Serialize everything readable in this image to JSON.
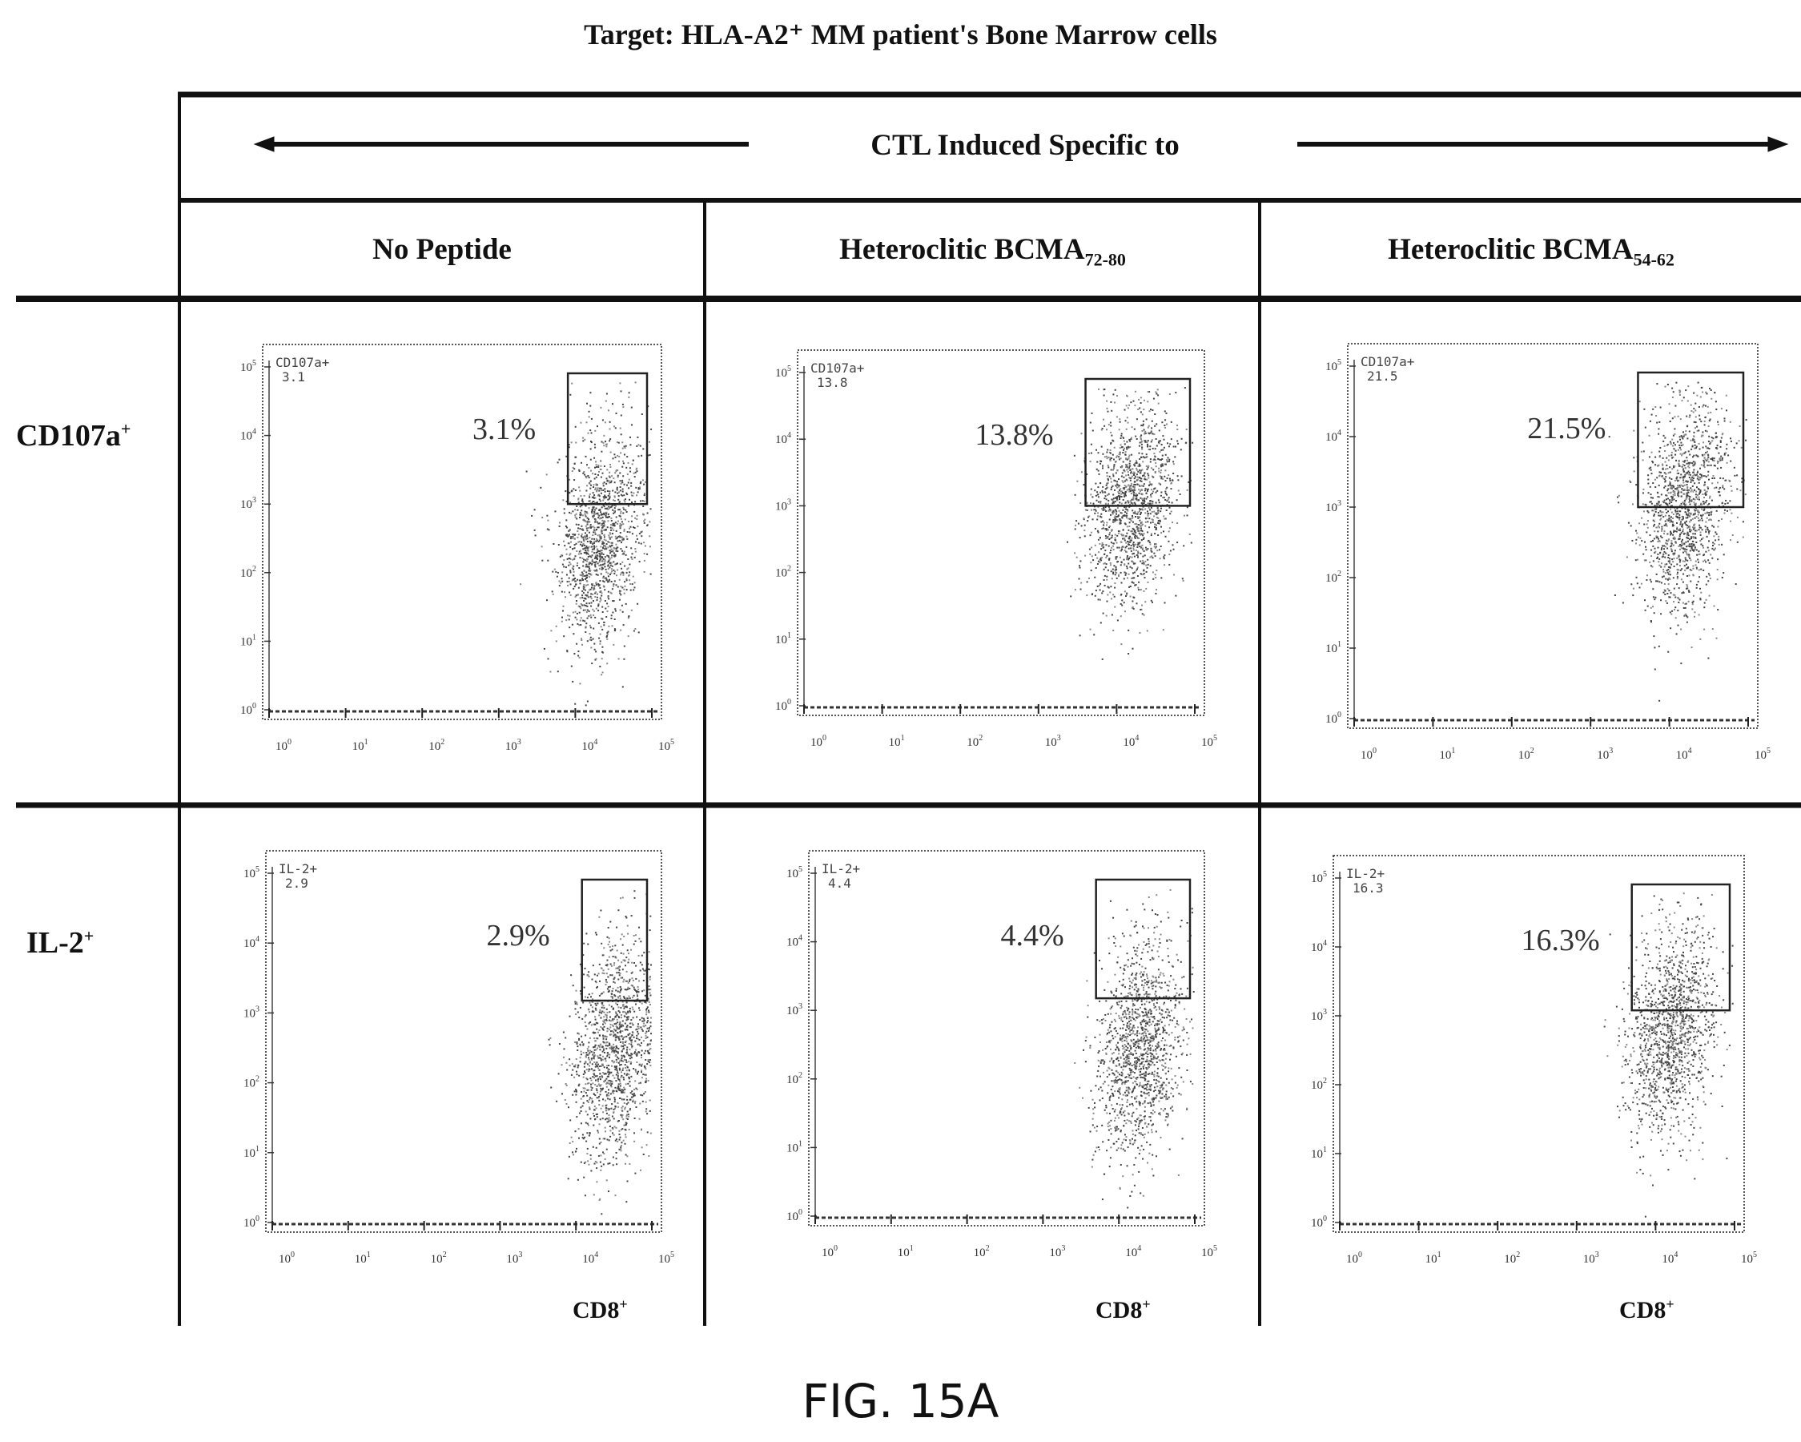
{
  "title": "Target: HLA-A2⁺ MM patient's Bone Marrow cells",
  "banner": "CTL Induced Specific to",
  "columns": [
    {
      "main": "No Peptide",
      "sub": ""
    },
    {
      "main": "Heteroclitic BCMA",
      "sub": "72-80"
    },
    {
      "main": "Heteroclitic BCMA",
      "sub": "54-62"
    }
  ],
  "rows": [
    {
      "main": "CD107a",
      "sup": "+"
    },
    {
      "main": "IL-2",
      "sup": "+"
    }
  ],
  "x_axis_label": {
    "main": "CD8",
    "sup": "+"
  },
  "figure_label": "FIG. 15A",
  "chart_data": [
    {
      "type": "scatter",
      "row": "CD107a+",
      "column": "No Peptide",
      "gate_name": "CD107a+",
      "gate_value": "3.1",
      "percent_label": "3.1%",
      "percent": 3.1,
      "x_scale": "log",
      "y_scale": "log",
      "xlim": [
        1,
        100000
      ],
      "ylim": [
        1,
        100000
      ],
      "x_ticks": [
        "10",
        "10",
        "10",
        "10",
        "10",
        "10"
      ],
      "x_tick_exps": [
        "0",
        "1",
        "2",
        "3",
        "4",
        "5"
      ],
      "y_ticks": [
        "10",
        "10",
        "10",
        "10",
        "10",
        "10"
      ],
      "y_tick_exps": [
        "0",
        "1",
        "2",
        "3",
        "4",
        "5"
      ],
      "population_center": {
        "x": 20000,
        "y": 300
      },
      "gate": {
        "x": [
          8000,
          100000
        ],
        "y": [
          1000,
          100000
        ]
      }
    },
    {
      "type": "scatter",
      "row": "CD107a+",
      "column": "Heteroclitic BCMA72-80",
      "gate_name": "CD107a+",
      "gate_value": "13.8",
      "percent_label": "13.8%",
      "percent": 13.8,
      "x_scale": "log",
      "y_scale": "log",
      "xlim": [
        1,
        100000
      ],
      "ylim": [
        1,
        100000
      ],
      "x_ticks": [
        "10",
        "10",
        "10",
        "10",
        "10",
        "10"
      ],
      "x_tick_exps": [
        "0",
        "1",
        "2",
        "3",
        "4",
        "5"
      ],
      "y_ticks": [
        "10",
        "10",
        "10",
        "10",
        "10",
        "10"
      ],
      "y_tick_exps": [
        "0",
        "1",
        "2",
        "3",
        "4",
        "5"
      ],
      "population_center": {
        "x": 15000,
        "y": 1000
      },
      "gate": {
        "x": [
          4000,
          100000
        ],
        "y": [
          1000,
          100000
        ]
      }
    },
    {
      "type": "scatter",
      "row": "CD107a+",
      "column": "Heteroclitic BCMA54-62",
      "gate_name": "CD107a+",
      "gate_value": "21.5",
      "percent_label": "21.5%",
      "percent": 21.5,
      "x_scale": "log",
      "y_scale": "log",
      "xlim": [
        1,
        100000
      ],
      "ylim": [
        1,
        100000
      ],
      "x_ticks": [
        "10",
        "10",
        "10",
        "10",
        "10",
        "10"
      ],
      "x_tick_exps": [
        "0",
        "1",
        "2",
        "3",
        "4",
        "5"
      ],
      "y_ticks": [
        "10",
        "10",
        "10",
        "10",
        "10",
        "10"
      ],
      "y_tick_exps": [
        "0",
        "1",
        "2",
        "3",
        "4",
        "5"
      ],
      "population_center": {
        "x": 15000,
        "y": 1000
      },
      "gate": {
        "x": [
          4000,
          100000
        ],
        "y": [
          1000,
          100000
        ]
      }
    },
    {
      "type": "scatter",
      "row": "IL-2+",
      "column": "No Peptide",
      "gate_name": "IL-2+",
      "gate_value": "2.9",
      "percent_label": "2.9%",
      "percent": 2.9,
      "x_scale": "log",
      "y_scale": "log",
      "xlim": [
        1,
        100000
      ],
      "ylim": [
        1,
        100000
      ],
      "x_ticks": [
        "10",
        "10",
        "10",
        "10",
        "10",
        "10"
      ],
      "x_tick_exps": [
        "0",
        "1",
        "2",
        "3",
        "4",
        "5"
      ],
      "y_ticks": [
        "10",
        "10",
        "10",
        "10",
        "10",
        "10"
      ],
      "y_tick_exps": [
        "0",
        "1",
        "2",
        "3",
        "4",
        "5"
      ],
      "population_center": {
        "x": 30000,
        "y": 300
      },
      "gate": {
        "x": [
          12000,
          100000
        ],
        "y": [
          1500,
          100000
        ]
      }
    },
    {
      "type": "scatter",
      "row": "IL-2+",
      "column": "Heteroclitic BCMA72-80",
      "gate_name": "IL-2+",
      "gate_value": "4.4",
      "percent_label": "4.4%",
      "percent": 4.4,
      "x_scale": "log",
      "y_scale": "log",
      "xlim": [
        1,
        100000
      ],
      "ylim": [
        1,
        100000
      ],
      "x_ticks": [
        "10",
        "10",
        "10",
        "10",
        "10",
        "10"
      ],
      "x_tick_exps": [
        "0",
        "1",
        "2",
        "3",
        "4",
        "5"
      ],
      "y_ticks": [
        "10",
        "10",
        "10",
        "10",
        "10",
        "10"
      ],
      "y_tick_exps": [
        "0",
        "1",
        "2",
        "3",
        "4",
        "5"
      ],
      "population_center": {
        "x": 18000,
        "y": 300
      },
      "gate": {
        "x": [
          5000,
          100000
        ],
        "y": [
          1500,
          100000
        ]
      }
    },
    {
      "type": "scatter",
      "row": "IL-2+",
      "column": "Heteroclitic BCMA54-62",
      "gate_name": "IL-2+",
      "gate_value": "16.3",
      "percent_label": "16.3%",
      "percent": 16.3,
      "x_scale": "log",
      "y_scale": "log",
      "xlim": [
        1,
        100000
      ],
      "ylim": [
        1,
        100000
      ],
      "x_ticks": [
        "10",
        "10",
        "10",
        "10",
        "10",
        "10"
      ],
      "x_tick_exps": [
        "0",
        "1",
        "2",
        "3",
        "4",
        "5"
      ],
      "y_ticks": [
        "10",
        "10",
        "10",
        "10",
        "10",
        "10"
      ],
      "y_tick_exps": [
        "0",
        "1",
        "2",
        "3",
        "4",
        "5"
      ],
      "population_center": {
        "x": 15000,
        "y": 600
      },
      "gate": {
        "x": [
          5000,
          100000
        ],
        "y": [
          1200,
          100000
        ]
      }
    }
  ]
}
